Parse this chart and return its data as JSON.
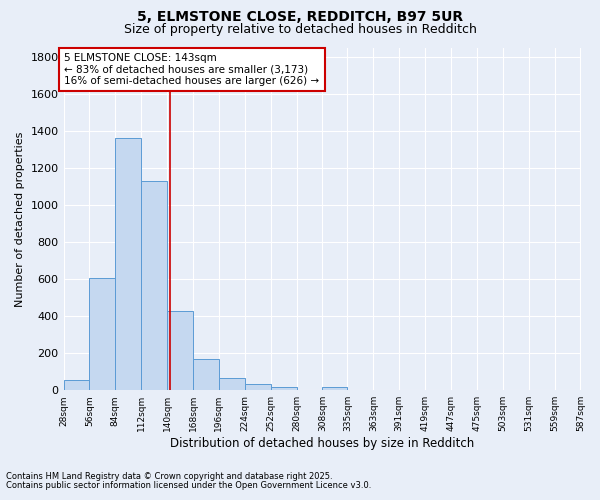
{
  "title1": "5, ELMSTONE CLOSE, REDDITCH, B97 5UR",
  "title2": "Size of property relative to detached houses in Redditch",
  "xlabel": "Distribution of detached houses by size in Redditch",
  "ylabel": "Number of detached properties",
  "bar_edges": [
    28,
    56,
    84,
    112,
    140,
    168,
    196,
    224,
    252,
    280,
    308,
    335,
    363,
    391,
    419,
    447,
    475,
    503,
    531,
    559,
    587
  ],
  "bar_heights": [
    55,
    605,
    1360,
    1130,
    430,
    170,
    65,
    35,
    20,
    0,
    15,
    0,
    0,
    0,
    0,
    0,
    0,
    0,
    0,
    0
  ],
  "bar_color": "#c5d8f0",
  "bar_edgecolor": "#5b9bd5",
  "bg_color": "#e8eef8",
  "grid_color": "#ffffff",
  "vline_x": 143,
  "vline_color": "#cc0000",
  "annotation_title": "5 ELMSTONE CLOSE: 143sqm",
  "annotation_line1": "← 83% of detached houses are smaller (3,173)",
  "annotation_line2": "16% of semi-detached houses are larger (626) →",
  "annotation_box_facecolor": "#ffffff",
  "annotation_box_edgecolor": "#cc0000",
  "ylim": [
    0,
    1850
  ],
  "yticks": [
    0,
    200,
    400,
    600,
    800,
    1000,
    1200,
    1400,
    1600,
    1800
  ],
  "footnote1": "Contains HM Land Registry data © Crown copyright and database right 2025.",
  "footnote2": "Contains public sector information licensed under the Open Government Licence v3.0.",
  "tick_labels": [
    "28sqm",
    "56sqm",
    "84sqm",
    "112sqm",
    "140sqm",
    "168sqm",
    "196sqm",
    "224sqm",
    "252sqm",
    "280sqm",
    "308sqm",
    "335sqm",
    "363sqm",
    "391sqm",
    "419sqm",
    "447sqm",
    "475sqm",
    "503sqm",
    "531sqm",
    "559sqm",
    "587sqm"
  ]
}
